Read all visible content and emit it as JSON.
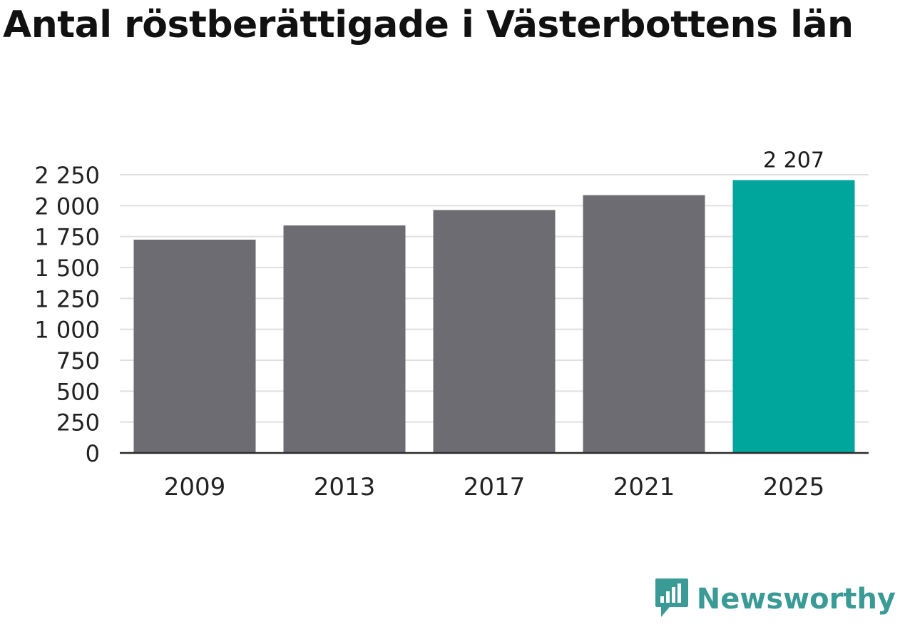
{
  "title": "Antal röstberättigade i Västerbottens län",
  "brand": {
    "name": "Newsworthy",
    "icon": "newsworthy-logo-icon",
    "color": "#3a9a95"
  },
  "chart_data": {
    "type": "bar",
    "title": "Antal röstberättigade i Västerbottens län",
    "categories": [
      "2009",
      "2013",
      "2017",
      "2021",
      "2025"
    ],
    "values": [
      1725,
      1840,
      1965,
      2085,
      2207
    ],
    "labels": [
      "",
      "",
      "",
      "",
      "2 207"
    ],
    "colors": [
      "#6d6c72",
      "#6d6c72",
      "#6d6c72",
      "#6d6c72",
      "#00a59b"
    ],
    "xlabel": "",
    "ylabel": "",
    "ylim": [
      0,
      2250
    ],
    "yticks": [
      0,
      250,
      500,
      750,
      1000,
      1250,
      1500,
      1750,
      2000,
      2250
    ],
    "ytick_labels": [
      "0",
      "250",
      "500",
      "750",
      "1 000",
      "1 250",
      "1 500",
      "1 750",
      "2 000",
      "2 250"
    ],
    "grid": true,
    "legend": "none"
  }
}
